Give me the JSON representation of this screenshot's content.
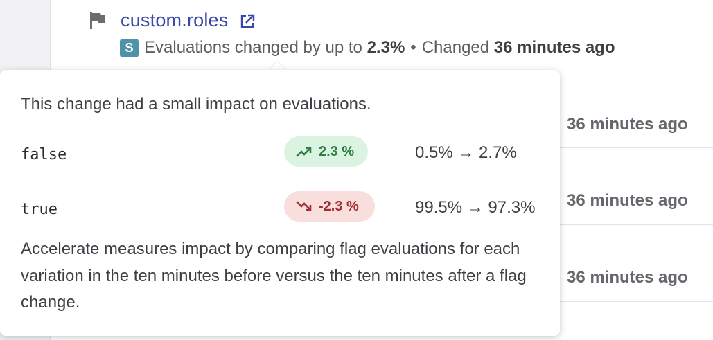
{
  "flag": {
    "name": "custom.roles",
    "badge": "S",
    "meta_prefix": "Evaluations changed by up to",
    "meta_amount": "2.3%",
    "separator": "•",
    "changed_prefix": "Changed",
    "changed_time": "36 minutes ago"
  },
  "background_rows": [
    {
      "time": "36 minutes ago"
    },
    {
      "time": "36 minutes ago"
    },
    {
      "time": "36 minutes ago"
    }
  ],
  "popover": {
    "summary": "This change had a small impact on evaluations.",
    "variations": [
      {
        "name": "false",
        "delta": "2.3 %",
        "trend": "up",
        "change": "0.5% → 2.7%"
      },
      {
        "name": "true",
        "delta": "-2.3 %",
        "trend": "down",
        "change": "99.5% → 97.3%"
      }
    ],
    "footnote": "Accelerate measures impact by comparing flag evaluations for each variation in the ten minutes before versus the ten minutes after a flag change."
  },
  "colors": {
    "link": "#3848a8",
    "badge": "#4f93a8",
    "positive_bg": "#dbf4e2",
    "positive_fg": "#2f7f45",
    "negative_bg": "#f9dede",
    "negative_fg": "#a12f2f"
  },
  "icons": {
    "flag": "flag-icon",
    "external": "external-link-icon",
    "up": "trending-up-icon",
    "down": "trending-down-icon"
  }
}
